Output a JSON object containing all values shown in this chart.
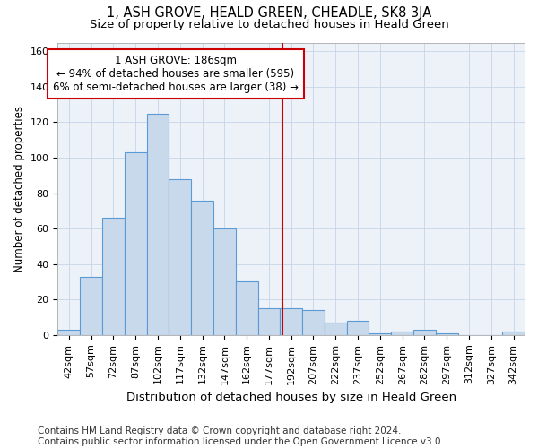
{
  "title": "1, ASH GROVE, HEALD GREEN, CHEADLE, SK8 3JA",
  "subtitle": "Size of property relative to detached houses in Heald Green",
  "xlabel": "Distribution of detached houses by size in Heald Green",
  "ylabel": "Number of detached properties",
  "bar_values": [
    3,
    33,
    66,
    103,
    125,
    88,
    76,
    60,
    30,
    15,
    15,
    14,
    7,
    8,
    1,
    2,
    3,
    1,
    0,
    0,
    2
  ],
  "bar_labels": [
    "42sqm",
    "57sqm",
    "72sqm",
    "87sqm",
    "102sqm",
    "117sqm",
    "132sqm",
    "147sqm",
    "162sqm",
    "177sqm",
    "192sqm",
    "207sqm",
    "222sqm",
    "237sqm",
    "252sqm",
    "267sqm",
    "282sqm",
    "297sqm",
    "312sqm",
    "327sqm",
    "342sqm"
  ],
  "bar_color": "#c9d9ec",
  "bar_edge_color": "#5b9bd5",
  "vline_color": "#cc0000",
  "annotation_line1": "1 ASH GROVE: 186sqm",
  "annotation_line2": "← 94% of detached houses are smaller (595)",
  "annotation_line3": "6% of semi-detached houses are larger (38) →",
  "annotation_box_color": "#cc0000",
  "ylim_max": 165,
  "yticks": [
    0,
    20,
    40,
    60,
    80,
    100,
    120,
    140,
    160
  ],
  "grid_color": "#c5d5e8",
  "background_color": "#edf2f9",
  "footer_line1": "Contains HM Land Registry data © Crown copyright and database right 2024.",
  "footer_line2": "Contains public sector information licensed under the Open Government Licence v3.0.",
  "title_fontsize": 10.5,
  "subtitle_fontsize": 9.5,
  "xlabel_fontsize": 9.5,
  "ylabel_fontsize": 8.5,
  "tick_fontsize": 8,
  "annotation_fontsize": 8.5,
  "footer_fontsize": 7.5
}
